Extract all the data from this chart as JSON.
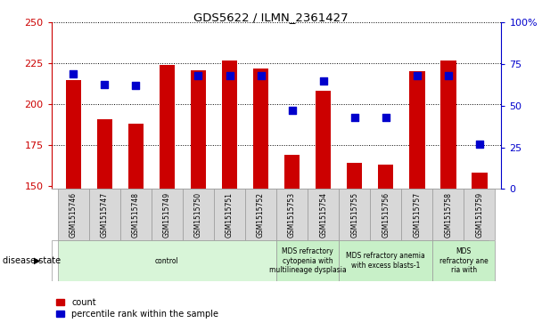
{
  "title": "GDS5622 / ILMN_2361427",
  "samples": [
    "GSM1515746",
    "GSM1515747",
    "GSM1515748",
    "GSM1515749",
    "GSM1515750",
    "GSM1515751",
    "GSM1515752",
    "GSM1515753",
    "GSM1515754",
    "GSM1515755",
    "GSM1515756",
    "GSM1515757",
    "GSM1515758",
    "GSM1515759"
  ],
  "count_values": [
    215,
    191,
    188,
    224,
    221,
    227,
    222,
    169,
    208,
    164,
    163,
    220,
    227,
    158
  ],
  "percentile_values": [
    69,
    63,
    62,
    null,
    68,
    68,
    68,
    47,
    65,
    43,
    43,
    68,
    68,
    27
  ],
  "ylim_left": [
    148,
    250
  ],
  "ylim_right": [
    0,
    100
  ],
  "yticks_left": [
    150,
    175,
    200,
    225,
    250
  ],
  "yticks_right": [
    0,
    25,
    50,
    75,
    100
  ],
  "disease_groups": [
    {
      "label": "control",
      "start": 0,
      "end": 7,
      "color": "#d8f5d8"
    },
    {
      "label": "MDS refractory\ncytopenia with\nmultilineage dysplasia",
      "start": 7,
      "end": 9,
      "color": "#c8f0c8"
    },
    {
      "label": "MDS refractory anemia\nwith excess blasts-1",
      "start": 9,
      "end": 12,
      "color": "#c8f0c8"
    },
    {
      "label": "MDS\nrefractory ane\nria with",
      "start": 12,
      "end": 14,
      "color": "#c8f0c8"
    }
  ],
  "bar_color": "#cc0000",
  "dot_color": "#0000cc",
  "bar_width": 0.5,
  "dot_size": 35,
  "tick_label_color_left": "#cc0000",
  "tick_label_color_right": "#0000cc",
  "legend_count_label": "count",
  "legend_percentile_label": "percentile rank within the sample",
  "disease_state_label": "disease state",
  "baseline": 148,
  "xtick_bg_color": "#d8d8d8",
  "xtick_border_color": "#999999",
  "plot_bg_color": "#ffffff"
}
